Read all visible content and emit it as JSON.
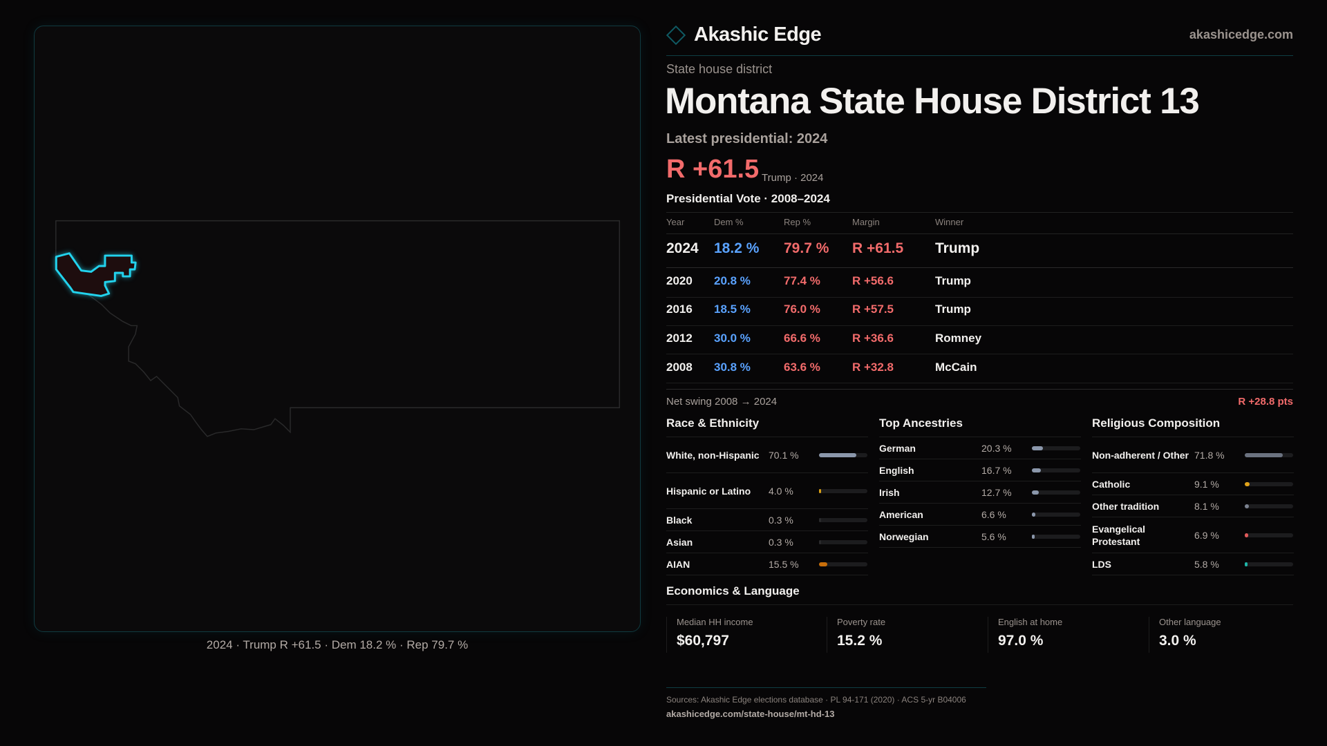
{
  "brand": {
    "name": "Akashic Edge",
    "site": "akashicedge.com",
    "accent": "#0f5a63"
  },
  "header": {
    "eyebrow": "State house district",
    "title": "Montana State House District 13",
    "latest": "Latest presidential: 2024",
    "margin": "R +61.5",
    "margin_sub": "Trump · 2024"
  },
  "map": {
    "caption": "2024 · Trump R +61.5 · Dem 18.2 % · Rep 79.7 %",
    "highlight_color": "#22d3ee"
  },
  "pres": {
    "title": "Presidential Vote · 2008–2024",
    "headers": [
      "Year",
      "Dem %",
      "Rep %",
      "Margin",
      "Winner"
    ],
    "rows": [
      {
        "year": "2024",
        "dem": "18.2 %",
        "rep": "79.7 %",
        "margin": "R +61.5",
        "winner": "Trump"
      },
      {
        "year": "2020",
        "dem": "20.8 %",
        "rep": "77.4 %",
        "margin": "R +56.6",
        "winner": "Trump"
      },
      {
        "year": "2016",
        "dem": "18.5 %",
        "rep": "76.0 %",
        "margin": "R +57.5",
        "winner": "Trump"
      },
      {
        "year": "2012",
        "dem": "30.0 %",
        "rep": "66.6 %",
        "margin": "R +36.6",
        "winner": "Romney"
      },
      {
        "year": "2008",
        "dem": "30.8 %",
        "rep": "63.6 %",
        "margin": "R +32.8",
        "winner": "McCain"
      }
    ],
    "swing_label": "Net swing 2008 → 2024",
    "swing_value": "R +28.8 pts"
  },
  "race": {
    "title": "Race & Ethnicity",
    "items": [
      {
        "label": "White, non-Hispanic",
        "value": "70.1 %",
        "pct": 70.1,
        "color": "#8b97ab"
      },
      {
        "label": "Hispanic or Latino",
        "value": "4.0 %",
        "pct": 4.0,
        "color": "#d9a016"
      },
      {
        "label": "Black",
        "value": "0.3 %",
        "pct": 0.3,
        "color": "#2a2a2c"
      },
      {
        "label": "Asian",
        "value": "0.3 %",
        "pct": 0.3,
        "color": "#2a2a2c"
      },
      {
        "label": "AIAN",
        "value": "15.5 %",
        "pct": 15.5,
        "color": "#c86e0a"
      }
    ]
  },
  "ancestry": {
    "title": "Top Ancestries",
    "items": [
      {
        "label": "German",
        "value": "20.3 %",
        "pct": 20.3,
        "color": "#8b97ab"
      },
      {
        "label": "English",
        "value": "16.7 %",
        "pct": 16.7,
        "color": "#8b97ab"
      },
      {
        "label": "Irish",
        "value": "12.7 %",
        "pct": 12.7,
        "color": "#8b97ab"
      },
      {
        "label": "American",
        "value": "6.6 %",
        "pct": 6.6,
        "color": "#8b97ab"
      },
      {
        "label": "Norwegian",
        "value": "5.6 %",
        "pct": 5.6,
        "color": "#8b97ab"
      }
    ]
  },
  "religion": {
    "title": "Religious Composition",
    "items": [
      {
        "label": "Non-adherent / Other",
        "value": "71.8 %",
        "pct": 71.8,
        "color": "#6b7280"
      },
      {
        "label": "Catholic",
        "value": "9.1 %",
        "pct": 9.1,
        "color": "#e0a21a"
      },
      {
        "label": "Other tradition",
        "value": "8.1 %",
        "pct": 8.1,
        "color": "#7b8290"
      },
      {
        "label": "Evangelical Protestant",
        "value": "6.9 %",
        "pct": 6.9,
        "color": "#e05a5a"
      },
      {
        "label": "LDS",
        "value": "5.8 %",
        "pct": 5.8,
        "color": "#1fb5a8"
      }
    ]
  },
  "econ": {
    "title": "Economics & Language",
    "items": [
      {
        "label": "Median HH income",
        "value": "$60,797"
      },
      {
        "label": "Poverty rate",
        "value": "15.2 %"
      },
      {
        "label": "English at home",
        "value": "97.0 %"
      },
      {
        "label": "Other language",
        "value": "3.0 %"
      }
    ]
  },
  "footer": {
    "sources": "Sources: Akashic Edge elections database · PL 94-171 (2020) · ACS 5-yr B04006",
    "url": "akashicedge.com/state-house/mt-hd-13"
  }
}
